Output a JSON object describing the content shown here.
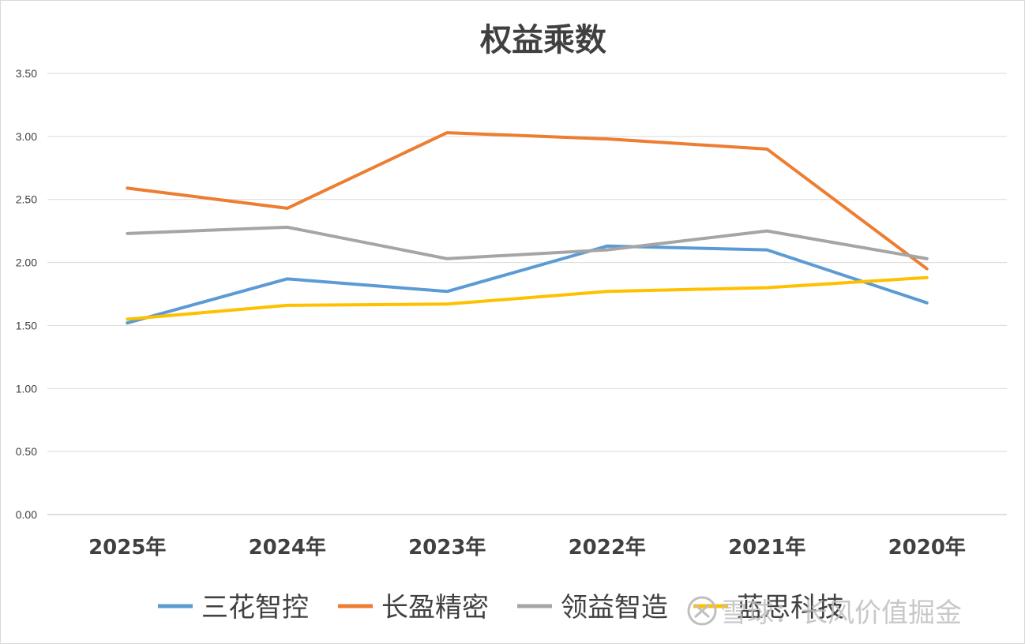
{
  "chart_data": {
    "type": "line",
    "title": "权益乘数",
    "categories": [
      "2025年",
      "2024年",
      "2023年",
      "2022年",
      "2021年",
      "2020年"
    ],
    "ylim": [
      0,
      3.5
    ],
    "yticks": [
      "0.00",
      "0.50",
      "1.00",
      "1.50",
      "2.00",
      "2.50",
      "3.00",
      "3.50"
    ],
    "grid": true,
    "legend_position": "bottom",
    "series": [
      {
        "name": "三花智控",
        "color": "#5b9bd5",
        "values": [
          1.52,
          1.87,
          1.77,
          2.13,
          2.1,
          1.68
        ]
      },
      {
        "name": "长盈精密",
        "color": "#ed7d31",
        "values": [
          2.59,
          2.43,
          3.03,
          2.98,
          2.9,
          1.95
        ]
      },
      {
        "name": "领益智造",
        "color": "#a5a5a5",
        "values": [
          2.23,
          2.28,
          2.03,
          2.1,
          2.25,
          2.03
        ]
      },
      {
        "name": "蓝思科技",
        "color": "#ffc000",
        "values": [
          1.55,
          1.66,
          1.67,
          1.77,
          1.8,
          1.88
        ]
      }
    ]
  },
  "watermark": {
    "text": "雪球：长风价值掘金"
  }
}
